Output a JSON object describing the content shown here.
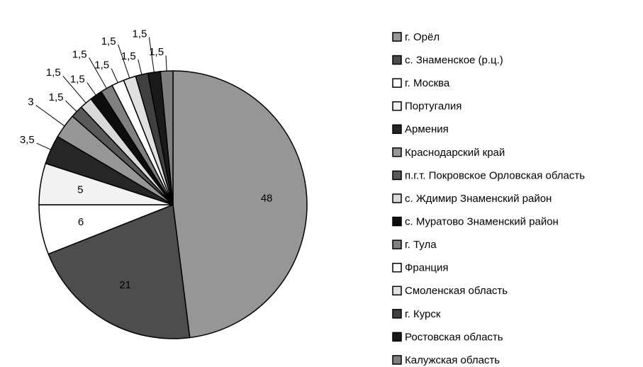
{
  "chart_data": {
    "type": "pie",
    "categories": [
      "г. Орёл",
      "с. Знаменское (р.ц.)",
      "г. Москва",
      "Португалия",
      "Армения",
      "Краснодарский край",
      "п.г.т. Покровское Орловская область",
      "с. Ждимир Знаменский район",
      "с. Муратово Знаменский район",
      "г. Тула",
      "Франция",
      "Смоленская область",
      "г. Курск",
      "Ростовская область",
      "Калужская область"
    ],
    "values": [
      48,
      21,
      6,
      5,
      3.5,
      3,
      1.5,
      1.5,
      1.5,
      1.5,
      1.5,
      1.5,
      1.5,
      1.5,
      1.5
    ],
    "value_labels": [
      "48",
      "21",
      "6",
      "5",
      "3,5",
      "3",
      "1,5",
      "1,5",
      "1,5",
      "1,5",
      "1,5",
      "1,5",
      "1,5",
      "1,5",
      "1,5"
    ],
    "colors": [
      "#969696",
      "#4d4d4d",
      "#ffffff",
      "#f2f2f2",
      "#262626",
      "#969696",
      "#595959",
      "#d9d9d9",
      "#0d0d0d",
      "#808080",
      "#ffffff",
      "#e0e0e0",
      "#404040",
      "#1a1a1a",
      "#7f7f7f"
    ],
    "legend": "right"
  }
}
